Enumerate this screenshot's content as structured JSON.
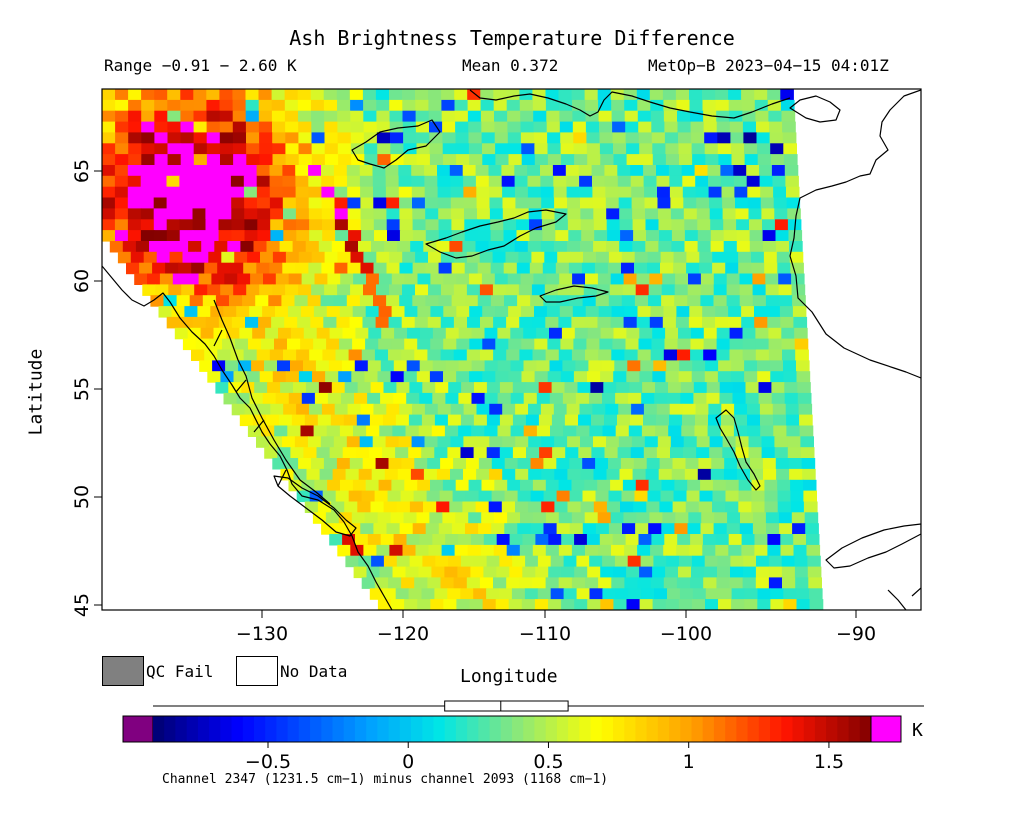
{
  "title": "Ash Brightness Temperature Difference",
  "stats": {
    "range": "Range −0.91 − 2.60 K",
    "mean": "Mean 0.372",
    "satellite": "MetOp−B 2023−04−15 04:01Z"
  },
  "axes": {
    "xlabel": "Longitude",
    "ylabel": "Latitude",
    "x_ticks": [
      "−130",
      "−120",
      "−110",
      "−100",
      "−90"
    ],
    "y_ticks": [
      "45",
      "50",
      "55",
      "60",
      "65"
    ]
  },
  "legend": {
    "qc_fail": "QC Fail",
    "no_data": "No Data",
    "qc_fail_color": "#808080",
    "no_data_color": "#ffffff"
  },
  "colorbar": {
    "unit": "K",
    "tick_labels": [
      "−0.5",
      "0",
      "0.5",
      "1",
      "1.5"
    ],
    "tick_values": [
      -0.5,
      0,
      0.5,
      1,
      1.5
    ],
    "vmin": -0.91,
    "vmax": 1.65,
    "under_color": "#800080",
    "over_color": "#ff00ff",
    "box_q1": 0.13,
    "box_median": 0.33,
    "box_q3": 0.57,
    "whisker_min": -0.91,
    "whisker_max": 2.6
  },
  "caption": "Channel 2347 (1231.5 cm−1) minus channel 2093 (1168 cm−1)",
  "chart_data": {
    "type": "heatmap",
    "x_range_deg": [
      -141,
      -85.5
    ],
    "y_range_deg": [
      44.8,
      68.5
    ],
    "colors": {
      "coast": "#000000",
      "background": "#ffffff"
    }
  }
}
